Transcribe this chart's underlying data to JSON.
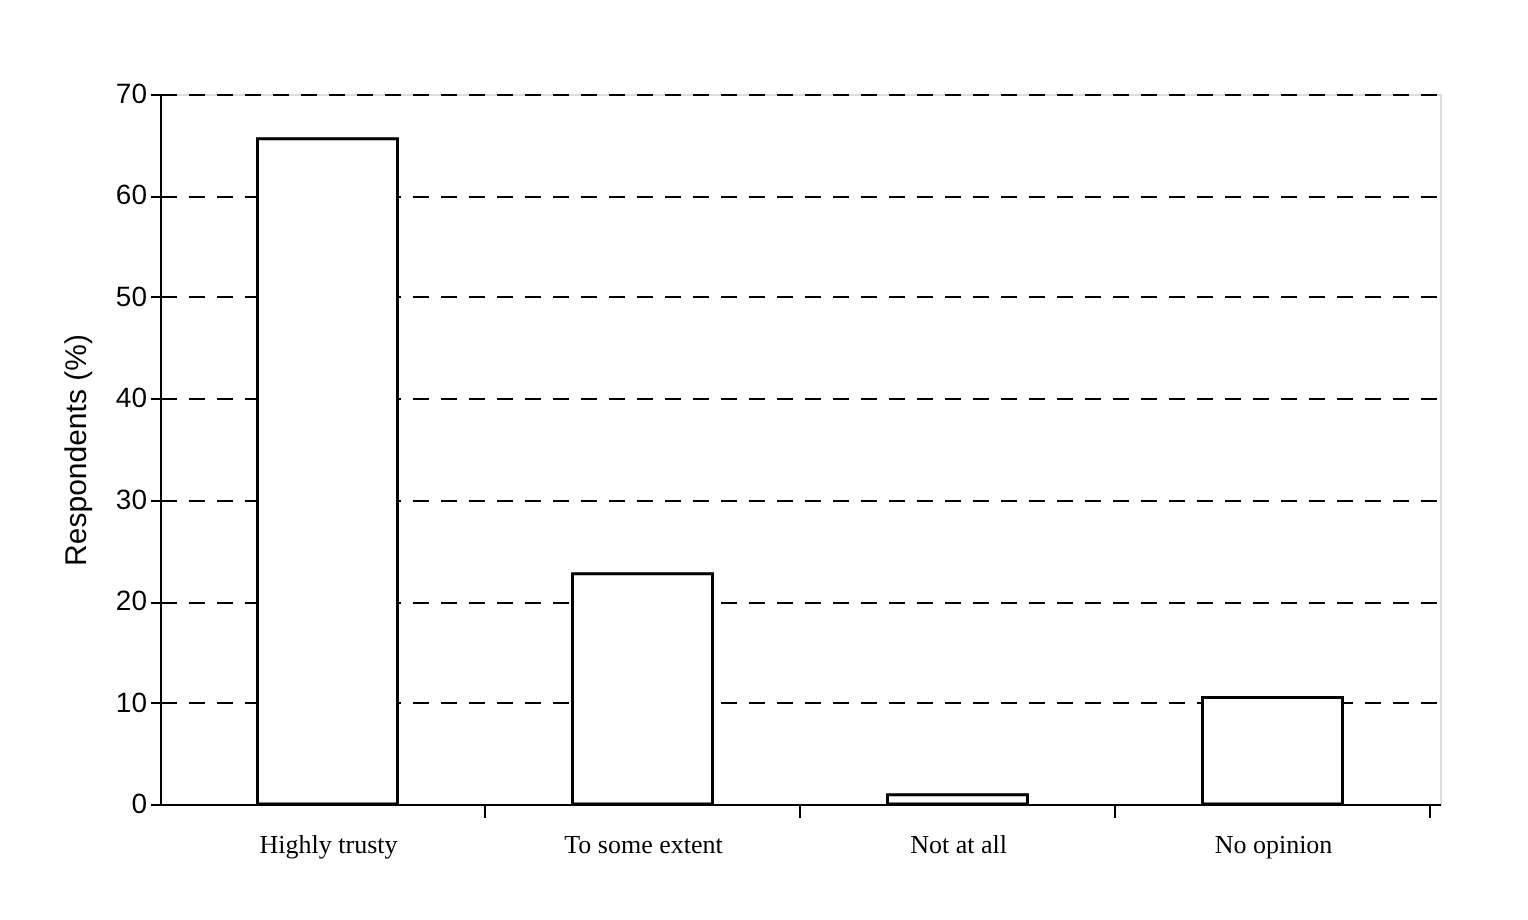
{
  "chart_data": {
    "type": "bar",
    "ylabel": "Respondents (%)",
    "categories": [
      "Highly trusty",
      "To some extent",
      "Not at all",
      "No opinion"
    ],
    "values": [
      65.6,
      22.7,
      0.9,
      10.5
    ],
    "color": "#ffffff",
    "ylim": [
      0,
      70
    ],
    "yticks": [
      0,
      10,
      20,
      30,
      40,
      50,
      60,
      70
    ],
    "grid": "y"
  }
}
